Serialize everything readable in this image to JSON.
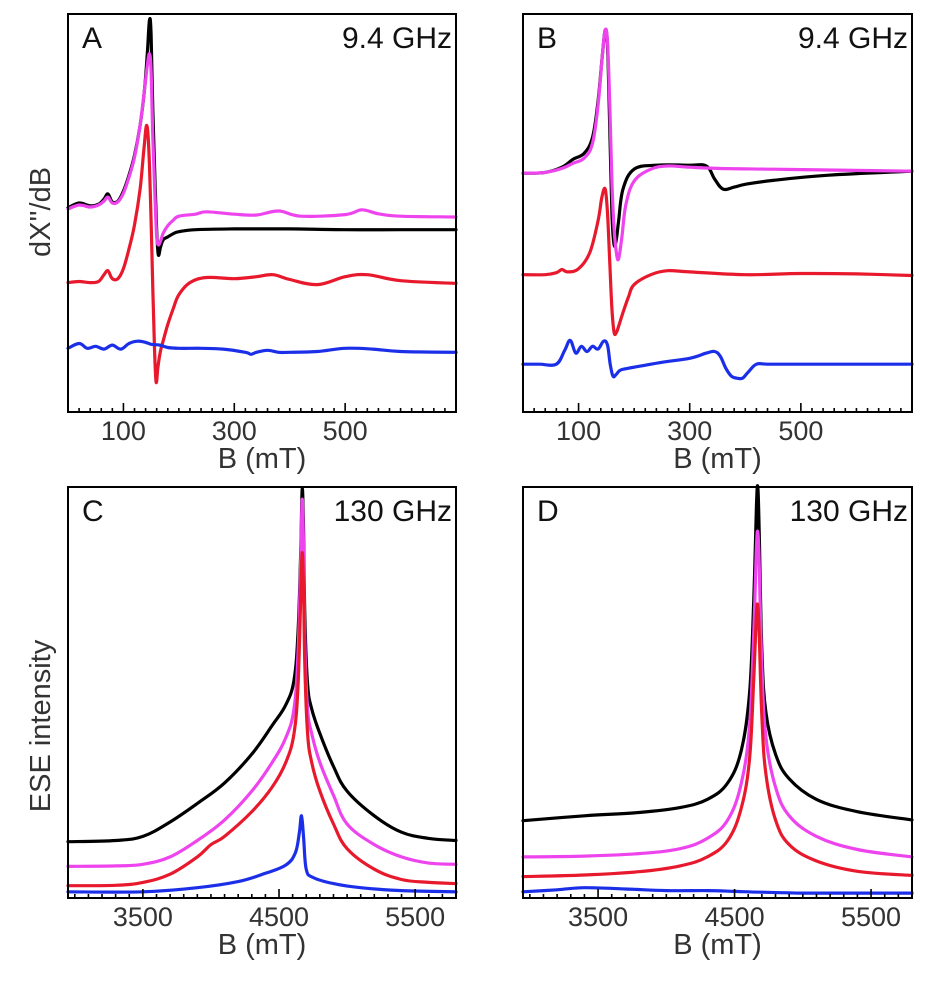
{
  "figure": {
    "ylabel_top": "dX''/dB",
    "ylabel_bottom": "ESE intensity"
  },
  "colors": {
    "black": "#000000",
    "magenta": "#ee44ee",
    "red": "#e8192c",
    "blue": "#1c2fe8"
  },
  "chart_data": [
    {
      "id": "A",
      "type": "line",
      "panel_label": "A",
      "frequency_label": "9.4 GHz",
      "xlabel": "B (mT)",
      "ylabel": "dX''/dB",
      "xlim": [
        0,
        700
      ],
      "ylim": [
        0,
        1
      ],
      "xticks": [
        100,
        300,
        500
      ],
      "xtick_labels": [
        "100",
        "300",
        "500"
      ],
      "series": [
        {
          "name": "black",
          "color": "#000000",
          "x": [
            0,
            20,
            40,
            55,
            65,
            72,
            80,
            90,
            100,
            110,
            120,
            130,
            138,
            143,
            147,
            150,
            153,
            157,
            160,
            163,
            167,
            172,
            180,
            190,
            200,
            230,
            300,
            400,
            500,
            600,
            700
          ],
          "y": [
            0.513,
            0.525,
            0.518,
            0.522,
            0.535,
            0.548,
            0.528,
            0.53,
            0.555,
            0.595,
            0.645,
            0.72,
            0.81,
            0.9,
            0.985,
            0.948,
            0.76,
            0.58,
            0.455,
            0.395,
            0.415,
            0.433,
            0.44,
            0.448,
            0.453,
            0.458,
            0.46,
            0.46,
            0.458,
            0.458,
            0.458
          ]
        },
        {
          "name": "magenta",
          "color": "#ee44ee",
          "x": [
            0,
            20,
            40,
            55,
            65,
            72,
            80,
            90,
            100,
            110,
            120,
            130,
            138,
            143,
            147,
            150,
            153,
            157,
            160,
            163,
            167,
            172,
            180,
            190,
            200,
            230,
            250,
            300,
            340,
            380,
            420,
            500,
            530,
            560,
            600,
            700
          ],
          "y": [
            0.51,
            0.52,
            0.515,
            0.52,
            0.53,
            0.54,
            0.525,
            0.528,
            0.55,
            0.59,
            0.64,
            0.72,
            0.81,
            0.87,
            0.9,
            0.855,
            0.69,
            0.54,
            0.44,
            0.42,
            0.43,
            0.45,
            0.468,
            0.482,
            0.492,
            0.497,
            0.503,
            0.497,
            0.495,
            0.505,
            0.492,
            0.496,
            0.508,
            0.498,
            0.492,
            0.49
          ]
        },
        {
          "name": "red",
          "color": "#e8192c",
          "x": [
            0,
            20,
            40,
            55,
            65,
            72,
            80,
            90,
            100,
            110,
            120,
            130,
            137,
            142,
            146,
            150,
            153,
            156,
            159,
            162,
            165,
            168,
            172,
            180,
            190,
            200,
            220,
            250,
            300,
            340,
            370,
            400,
            450,
            500,
            540,
            600,
            700
          ],
          "y": [
            0.325,
            0.328,
            0.325,
            0.328,
            0.345,
            0.355,
            0.335,
            0.335,
            0.36,
            0.41,
            0.47,
            0.56,
            0.66,
            0.72,
            0.655,
            0.48,
            0.31,
            0.16,
            0.075,
            0.11,
            0.14,
            0.16,
            0.18,
            0.22,
            0.26,
            0.295,
            0.325,
            0.338,
            0.335,
            0.34,
            0.345,
            0.333,
            0.32,
            0.34,
            0.345,
            0.33,
            0.323
          ]
        },
        {
          "name": "blue",
          "color": "#1c2fe8",
          "x": [
            0,
            20,
            35,
            50,
            65,
            80,
            95,
            110,
            125,
            140,
            150,
            165,
            180,
            200,
            240,
            280,
            320,
            330,
            340,
            360,
            380,
            400,
            450,
            500,
            550,
            600,
            700
          ],
          "y": [
            0.16,
            0.172,
            0.16,
            0.165,
            0.158,
            0.168,
            0.158,
            0.172,
            0.178,
            0.175,
            0.17,
            0.168,
            0.162,
            0.16,
            0.16,
            0.158,
            0.15,
            0.145,
            0.15,
            0.155,
            0.15,
            0.15,
            0.152,
            0.16,
            0.158,
            0.152,
            0.15
          ]
        }
      ]
    },
    {
      "id": "B",
      "type": "line",
      "panel_label": "B",
      "frequency_label": "9.4 GHz",
      "xlabel": "B (mT)",
      "ylabel": "",
      "xlim": [
        0,
        700
      ],
      "ylim": [
        0,
        1
      ],
      "xticks": [
        100,
        300,
        500
      ],
      "xtick_labels": [
        "100",
        "300",
        "500"
      ],
      "series": [
        {
          "name": "black",
          "color": "#000000",
          "x": [
            0,
            40,
            70,
            90,
            110,
            125,
            135,
            143,
            148,
            152,
            156,
            160,
            164,
            168,
            172,
            180,
            200,
            240,
            300,
            330,
            345,
            360,
            380,
            400,
            450,
            550,
            700
          ],
          "y": [
            0.6,
            0.602,
            0.615,
            0.635,
            0.65,
            0.69,
            0.78,
            0.9,
            0.96,
            0.92,
            0.72,
            0.5,
            0.42,
            0.435,
            0.48,
            0.56,
            0.61,
            0.62,
            0.62,
            0.618,
            0.585,
            0.56,
            0.565,
            0.572,
            0.582,
            0.595,
            0.605
          ]
        },
        {
          "name": "magenta",
          "color": "#ee44ee",
          "x": [
            0,
            40,
            70,
            90,
            110,
            125,
            135,
            143,
            148,
            152,
            156,
            160,
            164,
            168,
            172,
            178,
            185,
            200,
            230,
            260,
            300,
            350,
            450,
            550,
            700
          ],
          "y": [
            0.6,
            0.602,
            0.612,
            0.625,
            0.638,
            0.675,
            0.77,
            0.9,
            0.96,
            0.93,
            0.78,
            0.58,
            0.46,
            0.4,
            0.385,
            0.44,
            0.52,
            0.58,
            0.61,
            0.618,
            0.615,
            0.612,
            0.61,
            0.608,
            0.605
          ]
        },
        {
          "name": "red",
          "color": "#e8192c",
          "x": [
            0,
            40,
            60,
            70,
            80,
            100,
            120,
            135,
            142,
            148,
            152,
            156,
            160,
            164,
            168,
            172,
            180,
            190,
            200,
            230,
            260,
            300,
            400,
            500,
            600,
            700
          ],
          "y": [
            0.345,
            0.345,
            0.35,
            0.358,
            0.352,
            0.36,
            0.4,
            0.48,
            0.54,
            0.56,
            0.5,
            0.38,
            0.26,
            0.2,
            0.2,
            0.215,
            0.25,
            0.29,
            0.32,
            0.345,
            0.355,
            0.352,
            0.345,
            0.348,
            0.347,
            0.343
          ]
        },
        {
          "name": "blue",
          "color": "#1c2fe8",
          "x": [
            0,
            30,
            60,
            75,
            85,
            95,
            105,
            115,
            125,
            135,
            145,
            152,
            157,
            162,
            168,
            175,
            190,
            210,
            250,
            300,
            330,
            345,
            355,
            365,
            375,
            385,
            395,
            405,
            420,
            440,
            480,
            560,
            700
          ],
          "y": [
            0.12,
            0.12,
            0.12,
            0.155,
            0.18,
            0.148,
            0.165,
            0.152,
            0.165,
            0.158,
            0.178,
            0.168,
            0.12,
            0.09,
            0.095,
            0.105,
            0.11,
            0.115,
            0.125,
            0.135,
            0.148,
            0.152,
            0.14,
            0.11,
            0.09,
            0.085,
            0.085,
            0.1,
            0.12,
            0.12,
            0.12,
            0.12,
            0.12
          ]
        }
      ]
    },
    {
      "id": "C",
      "type": "line",
      "panel_label": "C",
      "frequency_label": "130 GHz",
      "xlabel": "B (mT)",
      "ylabel": "ESE intensity",
      "xlim": [
        2950,
        5800
      ],
      "ylim": [
        0,
        1
      ],
      "xticks": [
        3500,
        4500,
        5500
      ],
      "xtick_labels": [
        "3500",
        "4500",
        "5500"
      ],
      "series": [
        {
          "name": "black",
          "color": "#000000",
          "x": [
            2950,
            3300,
            3500,
            3700,
            3900,
            4100,
            4300,
            4450,
            4550,
            4610,
            4640,
            4660,
            4670,
            4680,
            4690,
            4710,
            4740,
            4800,
            4900,
            5000,
            5200,
            5400,
            5600,
            5800
          ],
          "y": [
            0.137,
            0.14,
            0.15,
            0.185,
            0.23,
            0.28,
            0.35,
            0.42,
            0.47,
            0.53,
            0.65,
            0.85,
            0.995,
            0.9,
            0.68,
            0.52,
            0.46,
            0.4,
            0.32,
            0.26,
            0.2,
            0.16,
            0.145,
            0.14
          ]
        },
        {
          "name": "magenta",
          "color": "#ee44ee",
          "x": [
            2950,
            3300,
            3500,
            3700,
            3900,
            4100,
            4300,
            4450,
            4550,
            4610,
            4640,
            4660,
            4670,
            4680,
            4690,
            4710,
            4740,
            4800,
            4900,
            5000,
            5200,
            5400,
            5600,
            5800
          ],
          "y": [
            0.077,
            0.078,
            0.082,
            0.1,
            0.14,
            0.19,
            0.26,
            0.33,
            0.39,
            0.46,
            0.6,
            0.83,
            0.97,
            0.86,
            0.62,
            0.46,
            0.4,
            0.33,
            0.25,
            0.18,
            0.13,
            0.1,
            0.085,
            0.082
          ]
        },
        {
          "name": "red",
          "color": "#e8192c",
          "x": [
            2950,
            3300,
            3500,
            3700,
            3900,
            4000,
            4100,
            4300,
            4450,
            4550,
            4610,
            4640,
            4660,
            4670,
            4680,
            4690,
            4710,
            4740,
            4800,
            4900,
            5000,
            5200,
            5400,
            5600,
            5800
          ],
          "y": [
            0.03,
            0.031,
            0.038,
            0.058,
            0.1,
            0.13,
            0.15,
            0.21,
            0.27,
            0.33,
            0.4,
            0.52,
            0.74,
            0.84,
            0.76,
            0.56,
            0.4,
            0.33,
            0.26,
            0.18,
            0.12,
            0.07,
            0.045,
            0.038,
            0.035
          ]
        },
        {
          "name": "blue",
          "color": "#1c2fe8",
          "x": [
            2950,
            3500,
            3900,
            4200,
            4400,
            4550,
            4620,
            4650,
            4665,
            4680,
            4700,
            4750,
            4900,
            5100,
            5400,
            5800
          ],
          "y": [
            0.015,
            0.015,
            0.025,
            0.04,
            0.06,
            0.08,
            0.11,
            0.16,
            0.2,
            0.15,
            0.07,
            0.05,
            0.035,
            0.025,
            0.018,
            0.015
          ]
        }
      ]
    },
    {
      "id": "D",
      "type": "line",
      "panel_label": "D",
      "frequency_label": "130 GHz",
      "xlabel": "B (mT)",
      "ylabel": "",
      "xlim": [
        2950,
        5800
      ],
      "ylim": [
        0,
        1
      ],
      "xticks": [
        3500,
        4500,
        5500
      ],
      "xtick_labels": [
        "3500",
        "4500",
        "5500"
      ],
      "series": [
        {
          "name": "black",
          "color": "#000000",
          "x": [
            2950,
            3400,
            3800,
            4100,
            4300,
            4450,
            4550,
            4610,
            4640,
            4660,
            4670,
            4680,
            4700,
            4730,
            4800,
            4900,
            5100,
            5400,
            5800
          ],
          "y": [
            0.188,
            0.2,
            0.208,
            0.22,
            0.24,
            0.28,
            0.36,
            0.5,
            0.72,
            0.95,
            1.0,
            0.9,
            0.6,
            0.45,
            0.35,
            0.29,
            0.24,
            0.21,
            0.19
          ]
        },
        {
          "name": "magenta",
          "color": "#ee44ee",
          "x": [
            2950,
            3400,
            3800,
            4100,
            4300,
            4450,
            4550,
            4610,
            4640,
            4660,
            4670,
            4680,
            4700,
            4730,
            4800,
            4900,
            5100,
            5400,
            5800
          ],
          "y": [
            0.1,
            0.102,
            0.108,
            0.12,
            0.145,
            0.19,
            0.28,
            0.42,
            0.64,
            0.85,
            0.89,
            0.82,
            0.56,
            0.39,
            0.27,
            0.2,
            0.15,
            0.118,
            0.1
          ]
        },
        {
          "name": "red",
          "color": "#e8192c",
          "x": [
            2950,
            3400,
            3800,
            4100,
            4300,
            4450,
            4550,
            4610,
            4640,
            4660,
            4670,
            4680,
            4700,
            4730,
            4800,
            4900,
            5100,
            5400,
            5800
          ],
          "y": [
            0.052,
            0.056,
            0.064,
            0.078,
            0.1,
            0.14,
            0.22,
            0.34,
            0.53,
            0.69,
            0.71,
            0.65,
            0.44,
            0.3,
            0.19,
            0.13,
            0.09,
            0.065,
            0.055
          ]
        },
        {
          "name": "blue",
          "color": "#1c2fe8",
          "x": [
            2950,
            3200,
            3400,
            3700,
            4000,
            4300,
            4500,
            4700,
            5000,
            5400,
            5800
          ],
          "y": [
            0.015,
            0.02,
            0.025,
            0.022,
            0.018,
            0.018,
            0.016,
            0.014,
            0.012,
            0.012,
            0.012
          ]
        }
      ]
    }
  ]
}
